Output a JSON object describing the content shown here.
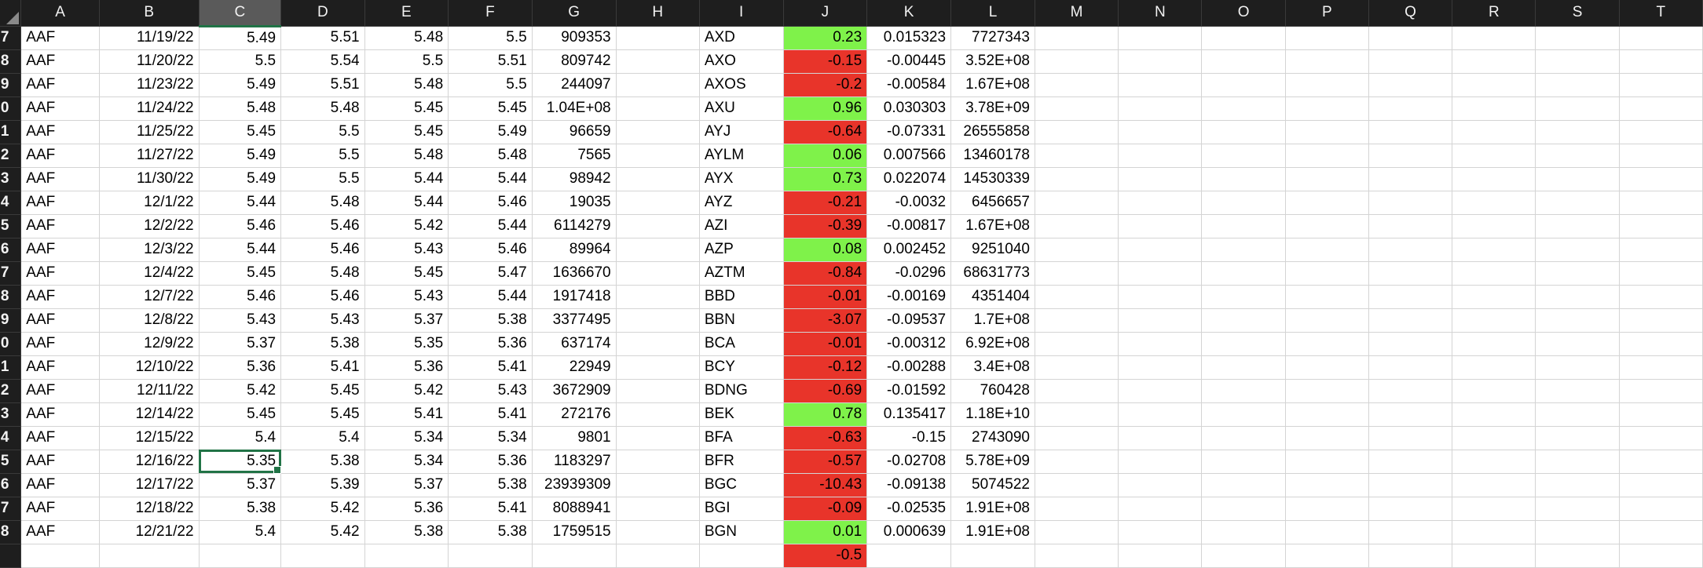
{
  "columns": [
    "A",
    "B",
    "C",
    "D",
    "E",
    "F",
    "G",
    "H",
    "I",
    "J",
    "K",
    "L",
    "M",
    "N",
    "O",
    "P",
    "Q",
    "R",
    "S",
    "T"
  ],
  "selected_column": "C",
  "active_cell": {
    "row": 18,
    "col": "C"
  },
  "colors": {
    "positive_fill": "#7ff24a",
    "negative_fill": "#e8342a",
    "selection_border": "#217346",
    "header_bg": "#1e1e1e"
  },
  "rows": [
    {
      "rownum": "7",
      "A": "AAF",
      "B": "11/19/22",
      "C": "5.49",
      "D": "5.51",
      "E": "5.48",
      "F": "5.5",
      "G": "909353",
      "H": "",
      "I": "AXD",
      "J": "0.23",
      "K": "0.015323",
      "L": "7727343"
    },
    {
      "rownum": "8",
      "A": "AAF",
      "B": "11/20/22",
      "C": "5.5",
      "D": "5.54",
      "E": "5.5",
      "F": "5.51",
      "G": "809742",
      "H": "",
      "I": "AXO",
      "J": "-0.15",
      "K": "-0.00445",
      "L": "3.52E+08"
    },
    {
      "rownum": "9",
      "A": "AAF",
      "B": "11/23/22",
      "C": "5.49",
      "D": "5.51",
      "E": "5.48",
      "F": "5.5",
      "G": "244097",
      "H": "",
      "I": "AXOS",
      "J": "-0.2",
      "K": "-0.00584",
      "L": "1.67E+08"
    },
    {
      "rownum": "0",
      "A": "AAF",
      "B": "11/24/22",
      "C": "5.48",
      "D": "5.48",
      "E": "5.45",
      "F": "5.45",
      "G": "1.04E+08",
      "H": "",
      "I": "AXU",
      "J": "0.96",
      "K": "0.030303",
      "L": "3.78E+09"
    },
    {
      "rownum": "1",
      "A": "AAF",
      "B": "11/25/22",
      "C": "5.45",
      "D": "5.5",
      "E": "5.45",
      "F": "5.49",
      "G": "96659",
      "H": "",
      "I": "AYJ",
      "J": "-0.64",
      "K": "-0.07331",
      "L": "26555858"
    },
    {
      "rownum": "2",
      "A": "AAF",
      "B": "11/27/22",
      "C": "5.49",
      "D": "5.5",
      "E": "5.48",
      "F": "5.48",
      "G": "7565",
      "H": "",
      "I": "AYLM",
      "J": "0.06",
      "K": "0.007566",
      "L": "13460178"
    },
    {
      "rownum": "3",
      "A": "AAF",
      "B": "11/30/22",
      "C": "5.49",
      "D": "5.5",
      "E": "5.44",
      "F": "5.44",
      "G": "98942",
      "H": "",
      "I": "AYX",
      "J": "0.73",
      "K": "0.022074",
      "L": "14530339"
    },
    {
      "rownum": "4",
      "A": "AAF",
      "B": "12/1/22",
      "C": "5.44",
      "D": "5.48",
      "E": "5.44",
      "F": "5.46",
      "G": "19035",
      "H": "",
      "I": "AYZ",
      "J": "-0.21",
      "K": "-0.0032",
      "L": "6456657"
    },
    {
      "rownum": "5",
      "A": "AAF",
      "B": "12/2/22",
      "C": "5.46",
      "D": "5.46",
      "E": "5.42",
      "F": "5.44",
      "G": "6114279",
      "H": "",
      "I": "AZI",
      "J": "-0.39",
      "K": "-0.00817",
      "L": "1.67E+08"
    },
    {
      "rownum": "6",
      "A": "AAF",
      "B": "12/3/22",
      "C": "5.44",
      "D": "5.46",
      "E": "5.43",
      "F": "5.46",
      "G": "89964",
      "H": "",
      "I": "AZP",
      "J": "0.08",
      "K": "0.002452",
      "L": "9251040"
    },
    {
      "rownum": "7",
      "A": "AAF",
      "B": "12/4/22",
      "C": "5.45",
      "D": "5.48",
      "E": "5.45",
      "F": "5.47",
      "G": "1636670",
      "H": "",
      "I": "AZTM",
      "J": "-0.84",
      "K": "-0.0296",
      "L": "68631773"
    },
    {
      "rownum": "8",
      "A": "AAF",
      "B": "12/7/22",
      "C": "5.46",
      "D": "5.46",
      "E": "5.43",
      "F": "5.44",
      "G": "1917418",
      "H": "",
      "I": "BBD",
      "J": "-0.01",
      "K": "-0.00169",
      "L": "4351404"
    },
    {
      "rownum": "9",
      "A": "AAF",
      "B": "12/8/22",
      "C": "5.43",
      "D": "5.43",
      "E": "5.37",
      "F": "5.38",
      "G": "3377495",
      "H": "",
      "I": "BBN",
      "J": "-3.07",
      "K": "-0.09537",
      "L": "1.7E+08"
    },
    {
      "rownum": "0",
      "A": "AAF",
      "B": "12/9/22",
      "C": "5.37",
      "D": "5.38",
      "E": "5.35",
      "F": "5.36",
      "G": "637174",
      "H": "",
      "I": "BCA",
      "J": "-0.01",
      "K": "-0.00312",
      "L": "6.92E+08"
    },
    {
      "rownum": "1",
      "A": "AAF",
      "B": "12/10/22",
      "C": "5.36",
      "D": "5.41",
      "E": "5.36",
      "F": "5.41",
      "G": "22949",
      "H": "",
      "I": "BCY",
      "J": "-0.12",
      "K": "-0.00288",
      "L": "3.4E+08"
    },
    {
      "rownum": "2",
      "A": "AAF",
      "B": "12/11/22",
      "C": "5.42",
      "D": "5.45",
      "E": "5.42",
      "F": "5.43",
      "G": "3672909",
      "H": "",
      "I": "BDNG",
      "J": "-0.69",
      "K": "-0.01592",
      "L": "760428"
    },
    {
      "rownum": "3",
      "A": "AAF",
      "B": "12/14/22",
      "C": "5.45",
      "D": "5.45",
      "E": "5.41",
      "F": "5.41",
      "G": "272176",
      "H": "",
      "I": "BEK",
      "J": "0.78",
      "K": "0.135417",
      "L": "1.18E+10"
    },
    {
      "rownum": "4",
      "A": "AAF",
      "B": "12/15/22",
      "C": "5.4",
      "D": "5.4",
      "E": "5.34",
      "F": "5.34",
      "G": "9801",
      "H": "",
      "I": "BFA",
      "J": "-0.63",
      "K": "-0.15",
      "L": "2743090"
    },
    {
      "rownum": "5",
      "A": "AAF",
      "B": "12/16/22",
      "C": "5.35",
      "D": "5.38",
      "E": "5.34",
      "F": "5.36",
      "G": "1183297",
      "H": "",
      "I": "BFR",
      "J": "-0.57",
      "K": "-0.02708",
      "L": "5.78E+09"
    },
    {
      "rownum": "6",
      "A": "AAF",
      "B": "12/17/22",
      "C": "5.37",
      "D": "5.39",
      "E": "5.37",
      "F": "5.38",
      "G": "23939309",
      "H": "",
      "I": "BGC",
      "J": "-10.43",
      "K": "-0.09138",
      "L": "5074522"
    },
    {
      "rownum": "7",
      "A": "AAF",
      "B": "12/18/22",
      "C": "5.38",
      "D": "5.42",
      "E": "5.36",
      "F": "5.41",
      "G": "8088941",
      "H": "",
      "I": "BGI",
      "J": "-0.09",
      "K": "-0.02535",
      "L": "1.91E+08"
    },
    {
      "rownum": "8",
      "A": "AAF",
      "B": "12/21/22",
      "C": "5.4",
      "D": "5.42",
      "E": "5.38",
      "F": "5.38",
      "G": "1759515",
      "H": "",
      "I": "BGN",
      "J": "0.01",
      "K": "0.000639",
      "L": "1.91E+08"
    },
    {
      "rownum": "",
      "A": "",
      "B": "",
      "C": "",
      "D": "",
      "E": "",
      "F": "",
      "G": "",
      "H": "",
      "I": "",
      "J": "-0.5",
      "K": "",
      "L": ""
    }
  ]
}
